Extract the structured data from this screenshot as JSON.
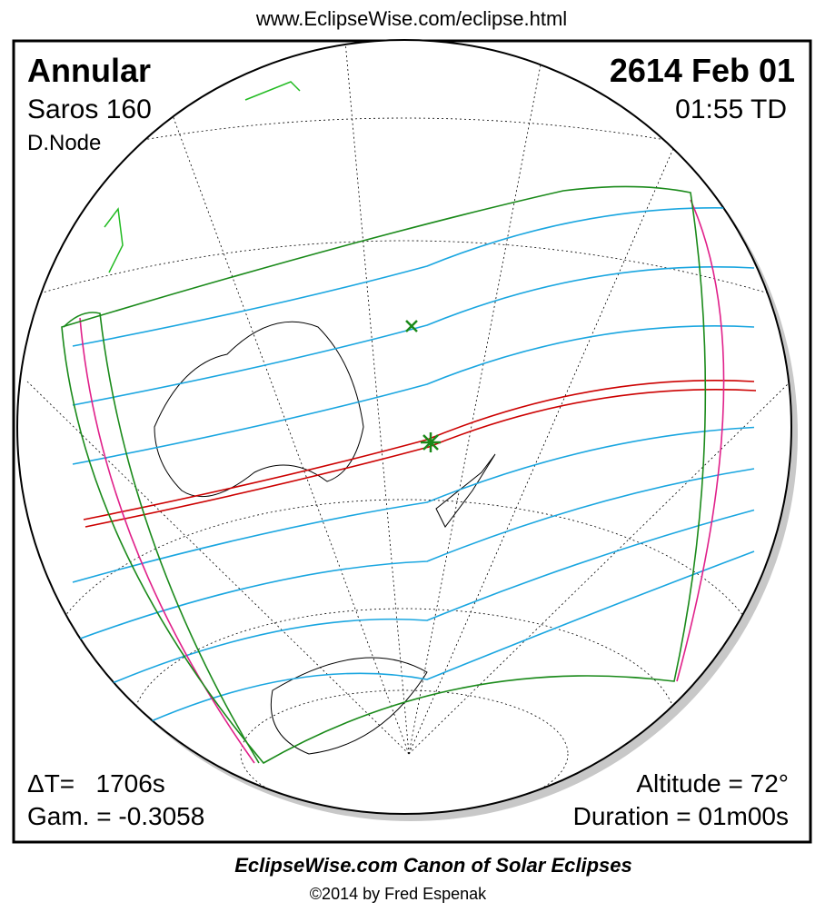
{
  "header": {
    "url": "www.EclipseWise.com/eclipse.html"
  },
  "eclipse": {
    "type": "Annular",
    "saros": "Saros 160",
    "node": "D.Node",
    "date": "2614 Feb 01",
    "time": "01:55 TD",
    "delta_t": "ΔT=   1706s",
    "gamma": "Gam. = -0.3058",
    "altitude": "Altitude = 72°",
    "duration": "Duration = 01m00s"
  },
  "footer": {
    "title": "EclipseWise.com Canon of Solar Eclipses",
    "copyright": "©2014 by Fred Espenak"
  }
}
